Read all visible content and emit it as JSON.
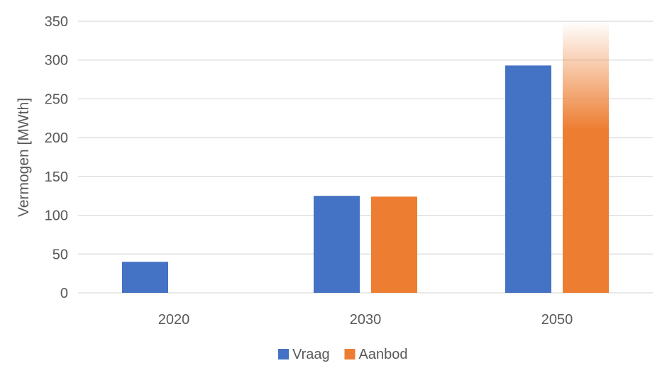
{
  "chart_data": {
    "type": "bar",
    "title": "",
    "xlabel": "",
    "ylabel": "Vermogen  [MWth]",
    "categories": [
      "2020",
      "2030",
      "2050"
    ],
    "ylim": [
      0,
      350
    ],
    "yticks": [
      0,
      50,
      100,
      150,
      200,
      250,
      300,
      350
    ],
    "grid": true,
    "legend_position": "bottom",
    "series": [
      {
        "name": "Vraag",
        "color": "#4472c4",
        "values": [
          40,
          125,
          293
        ]
      },
      {
        "name": "Aanbod",
        "color": "#ed7d31",
        "values": [
          null,
          124,
          350
        ],
        "gradient_fade_last": true
      }
    ]
  }
}
